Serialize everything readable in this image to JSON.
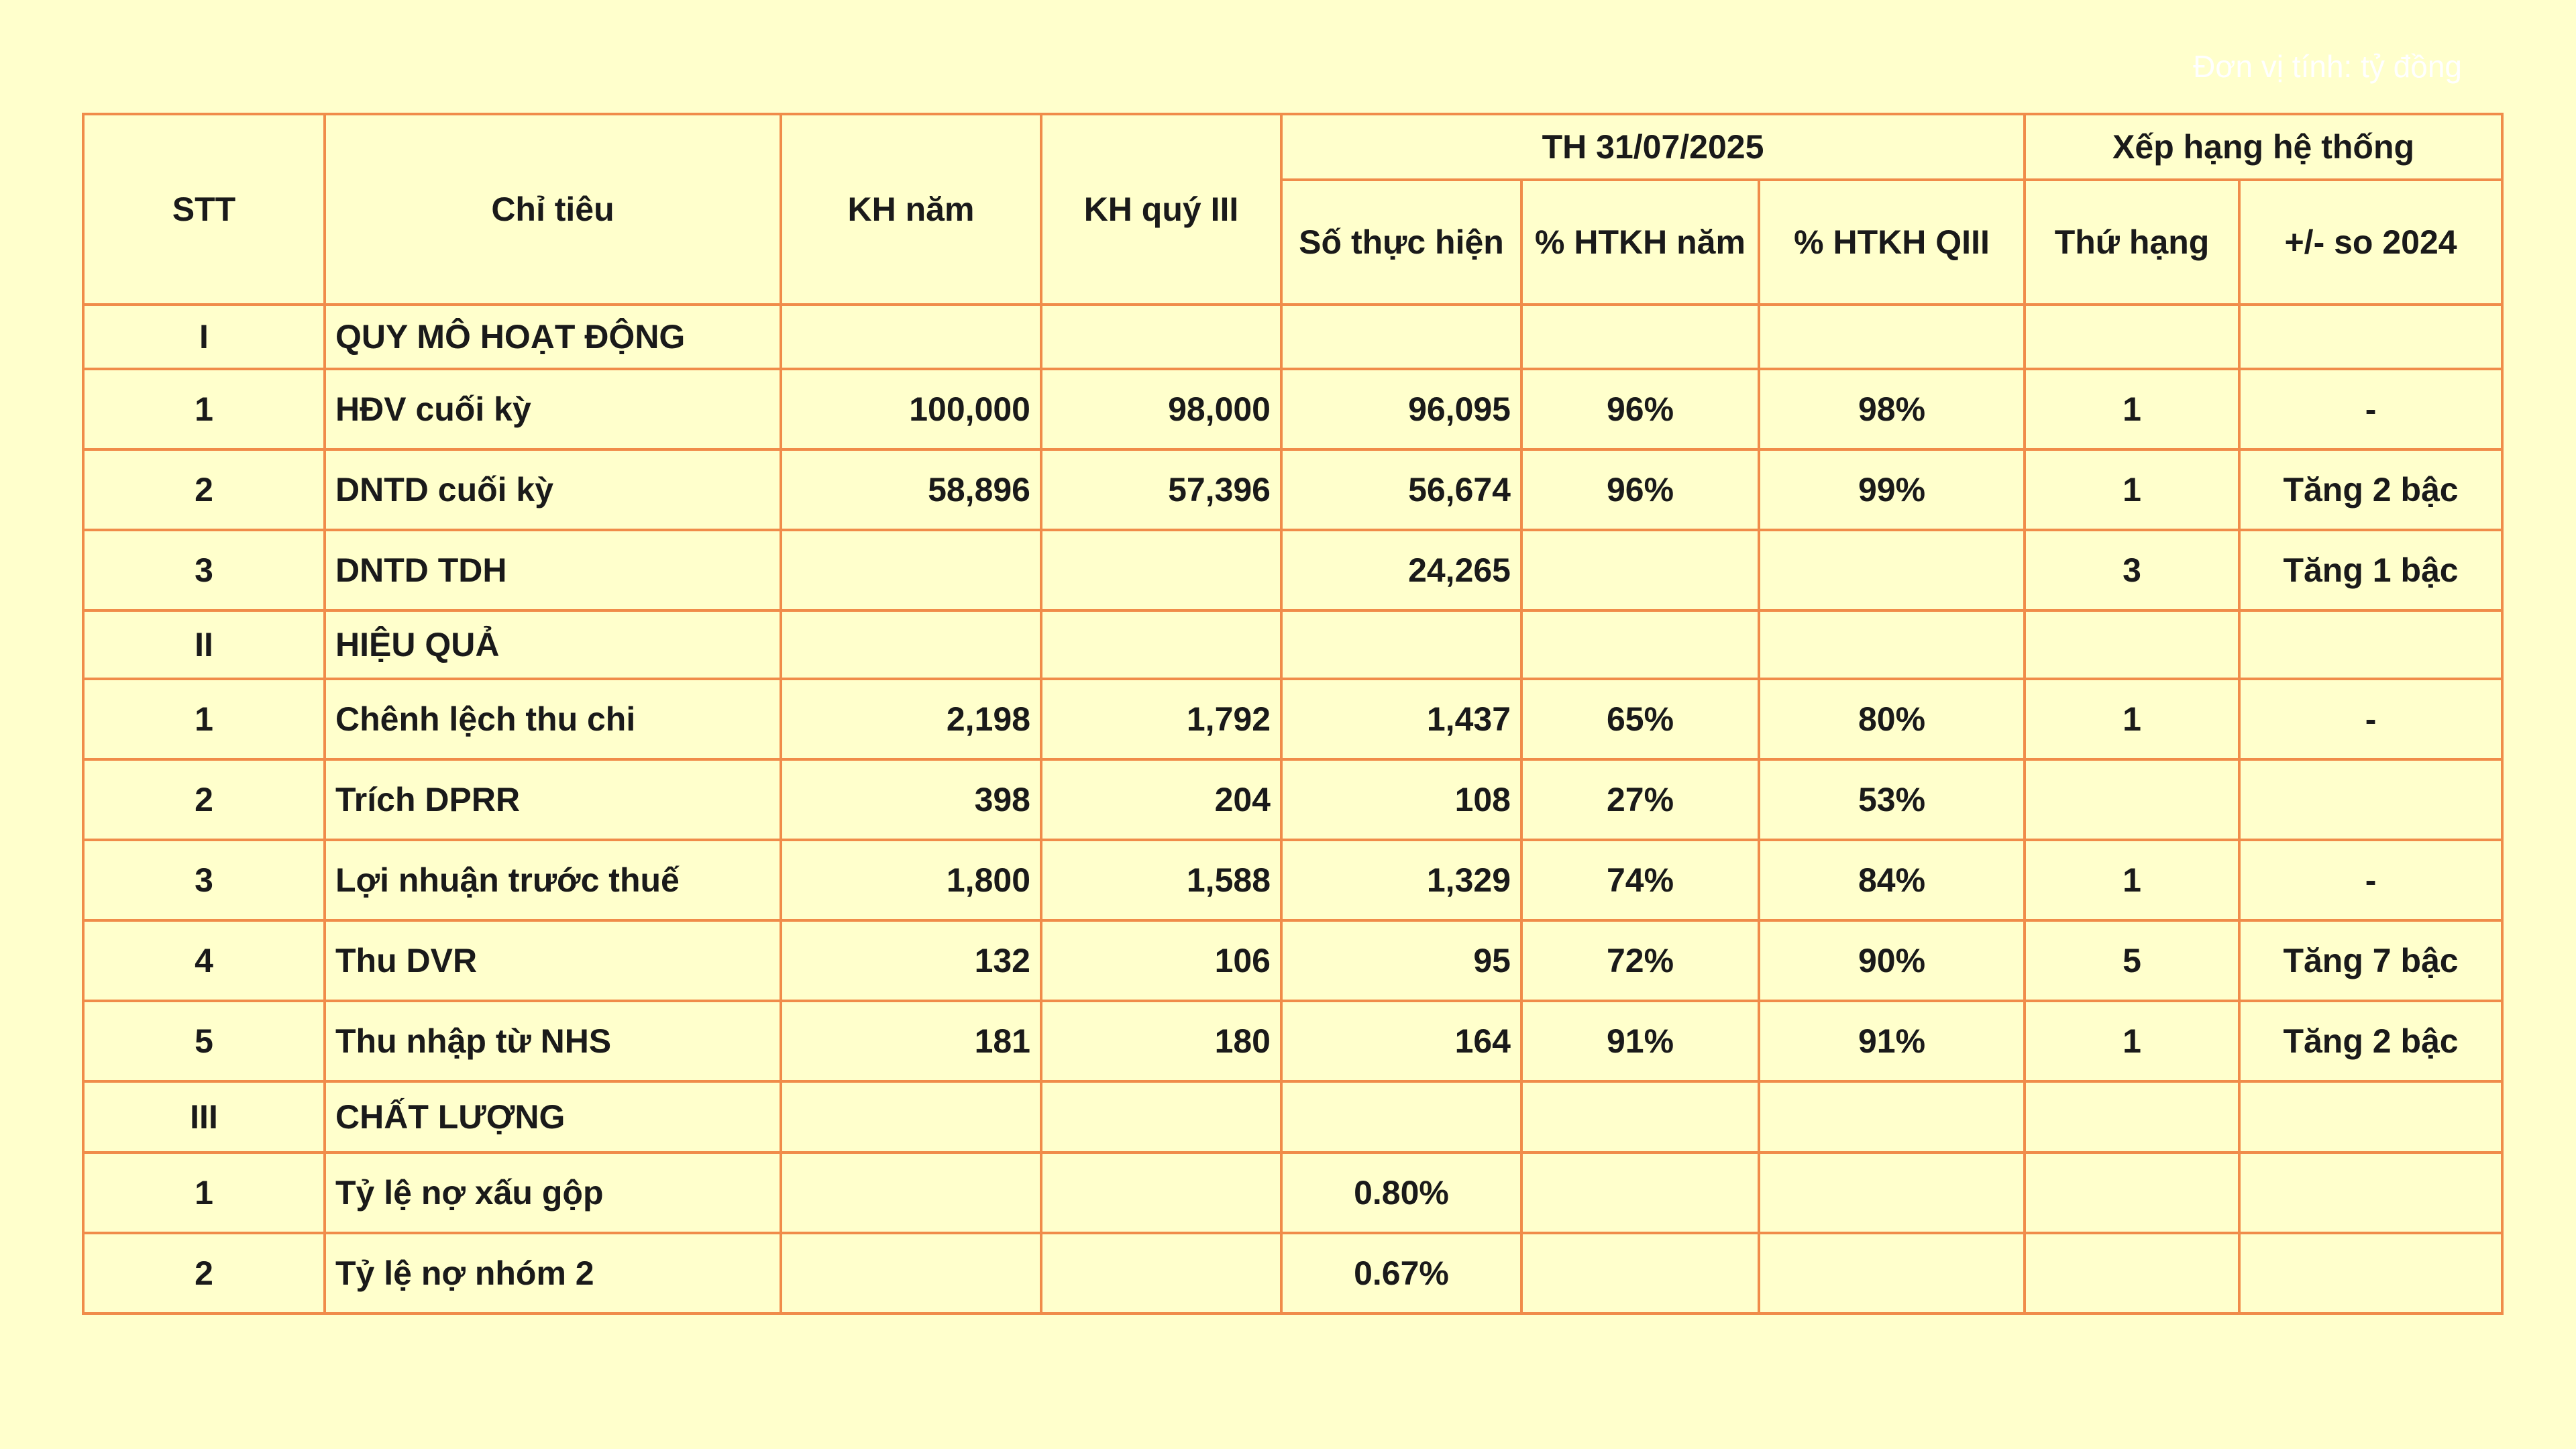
{
  "unit_note": "Đơn vị tính: tỷ đồng",
  "header": {
    "stt": "STT",
    "chi_tieu": "Chỉ tiêu",
    "kh_nam": "KH năm",
    "kh_quy": "KH quý III",
    "th_group": "TH 31/07/2025",
    "so_thuc_hien": "Số thực hiện",
    "htkh_nam": "% HTKH năm",
    "htkh_qiii": "% HTKH QIII",
    "xh_group": "Xếp hạng hệ thống",
    "thu_hang": "Thứ hạng",
    "so_2024": "+/- so 2024"
  },
  "rows": [
    {
      "stt": "I",
      "name": "QUY MÔ HOẠT ĐỘNG",
      "kh_nam": "",
      "kh_quy": "",
      "th": "",
      "pct_nam": "",
      "pct_q": "",
      "rank": "",
      "change": ""
    },
    {
      "stt": "1",
      "name": "HĐV cuối kỳ",
      "kh_nam": "100,000",
      "kh_quy": "98,000",
      "th": "96,095",
      "pct_nam": "96%",
      "pct_q": "98%",
      "rank": "1",
      "change": "-"
    },
    {
      "stt": "2",
      "name": "DNTD cuối kỳ",
      "kh_nam": "58,896",
      "kh_quy": "57,396",
      "th": "56,674",
      "pct_nam": "96%",
      "pct_q": "99%",
      "rank": "1",
      "change": "Tăng 2 bậc"
    },
    {
      "stt": "3",
      "name": "DNTD TDH",
      "kh_nam": "",
      "kh_quy": "",
      "th": "24,265",
      "pct_nam": "",
      "pct_q": "",
      "rank": "3",
      "change": "Tăng 1 bậc"
    },
    {
      "stt": "II",
      "name": "HIỆU QUẢ",
      "kh_nam": "",
      "kh_quy": "",
      "th": "",
      "pct_nam": "",
      "pct_q": "",
      "rank": "",
      "change": ""
    },
    {
      "stt": "1",
      "name": "Chênh lệch thu chi",
      "kh_nam": "2,198",
      "kh_quy": "1,792",
      "th": "1,437",
      "pct_nam": "65%",
      "pct_q": "80%",
      "rank": "1",
      "change": "-"
    },
    {
      "stt": "2",
      "name": "Trích DPRR",
      "kh_nam": "398",
      "kh_quy": "204",
      "th": "108",
      "pct_nam": "27%",
      "pct_q": "53%",
      "rank": "",
      "change": ""
    },
    {
      "stt": "3",
      "name": "Lợi nhuận trước thuế",
      "kh_nam": "1,800",
      "kh_quy": "1,588",
      "th": "1,329",
      "pct_nam": "74%",
      "pct_q": "84%",
      "rank": "1",
      "change": "-"
    },
    {
      "stt": "4",
      "name": "Thu DVR",
      "kh_nam": "132",
      "kh_quy": "106",
      "th": "95",
      "pct_nam": "72%",
      "pct_q": "90%",
      "rank": "5",
      "change": "Tăng 7 bậc"
    },
    {
      "stt": "5",
      "name": "Thu nhập từ NHS",
      "kh_nam": "181",
      "kh_quy": "180",
      "th": "164",
      "pct_nam": "91%",
      "pct_q": "91%",
      "rank": "1",
      "change": "Tăng 2 bậc"
    },
    {
      "stt": "III",
      "name": "CHẤT LƯỢNG",
      "kh_nam": "",
      "kh_quy": "",
      "th": "",
      "pct_nam": "",
      "pct_q": "",
      "rank": "",
      "change": ""
    },
    {
      "stt": "1",
      "name": "Tỷ lệ nợ xấu gộp",
      "kh_nam": "",
      "kh_quy": "",
      "th": "0.80%",
      "pct_nam": "",
      "pct_q": "",
      "rank": "",
      "change": ""
    },
    {
      "stt": "2",
      "name": "Tỷ lệ nợ nhóm 2",
      "kh_nam": "",
      "kh_quy": "",
      "th": "0.67%",
      "pct_nam": "",
      "pct_q": "",
      "rank": "",
      "change": ""
    }
  ]
}
